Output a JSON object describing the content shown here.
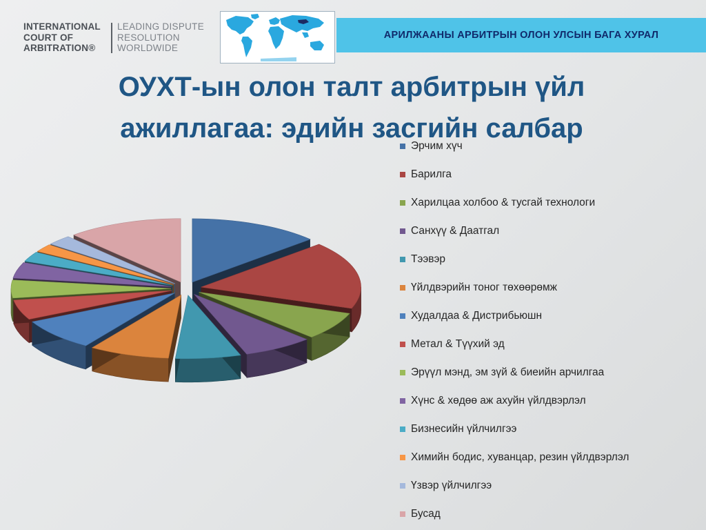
{
  "header": {
    "logo_left": "INTERNATIONAL\nCOURT OF\nARBITRATION®",
    "logo_right": "LEADING DISPUTE\nRESOLUTION\nWORLDWIDE",
    "banner": "АРИЛЖААНЫ АРБИТРЫН ОЛОН УЛСЫН БАГА ХУРАЛ"
  },
  "title": "ОУХТ-ын олон талт арбитрын үйл\nажиллагаа: эдийн засгийн салбар",
  "chart_data": {
    "type": "pie",
    "style": "3d-exploded",
    "title": "",
    "legend_position": "right",
    "categories": [
      "Эрчим хүч",
      "Барилга",
      "Харилцаа холбоо & тусгай технологи",
      "Санхүү & Даатгал",
      "Тээвэр",
      "Үйлдвэрийн тоног төхөөрөмж",
      "Худалдаа & Дистрибьюшн",
      "Метал & Түүхий эд",
      "Эрүүл мэнд, эм зүй & биеийн арчилгаа",
      "Хүнс & хөдөө аж ахуйн үйлдвэрлэл",
      "Бизнесийн үйлчилгээ",
      "Химийн бодис, хуванцар, резин үйлдвэрлэл",
      "Үзвэр үйлчилгээ",
      "Бусад"
    ],
    "values": [
      13,
      17,
      7,
      7,
      6.5,
      8,
      8,
      5,
      4.5,
      4,
      2.5,
      2,
      2.5,
      11.5
    ],
    "colors": [
      "#4572a7",
      "#aa4643",
      "#89a54e",
      "#71588f",
      "#4198af",
      "#db843d",
      "#4f81bd",
      "#c0504d",
      "#9bbb59",
      "#8064a2",
      "#4bacc6",
      "#f79646",
      "#a5b9dc",
      "#d9a5a8"
    ]
  }
}
